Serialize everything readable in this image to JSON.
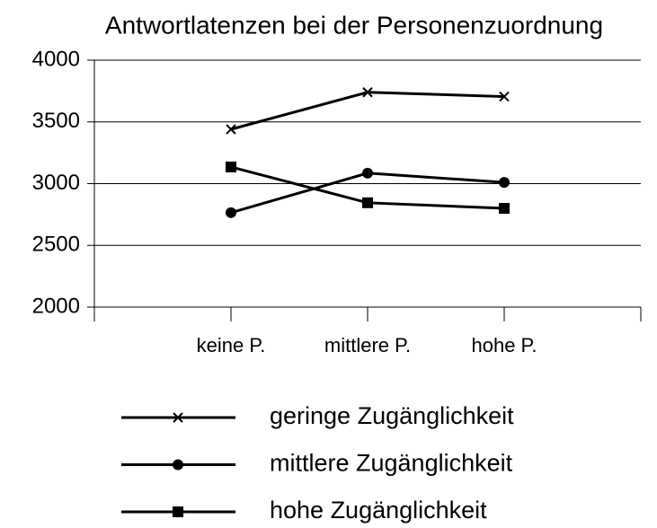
{
  "chart_data": {
    "type": "line",
    "title": "Antwortlatenzen bei der Personenzuordnung",
    "categories": [
      "keine P.",
      "mittlere P.",
      "hohe P."
    ],
    "series": [
      {
        "name": "geringe Zugänglichkeit",
        "color": "#000000",
        "marker": "x",
        "values": [
          3440,
          3740,
          3705
        ]
      },
      {
        "name": "mittlere Zugänglichkeit",
        "color": "#000000",
        "marker": "circle",
        "values": [
          2765,
          3085,
          3010
        ]
      },
      {
        "name": "hohe Zugänglichkeit",
        "color": "#000000",
        "marker": "square",
        "values": [
          3135,
          2845,
          2800
        ]
      }
    ],
    "ylim": [
      2000,
      4000
    ],
    "yticks": [
      2000,
      2500,
      3000,
      3500,
      4000
    ],
    "grid": true,
    "legend": "bottom"
  }
}
